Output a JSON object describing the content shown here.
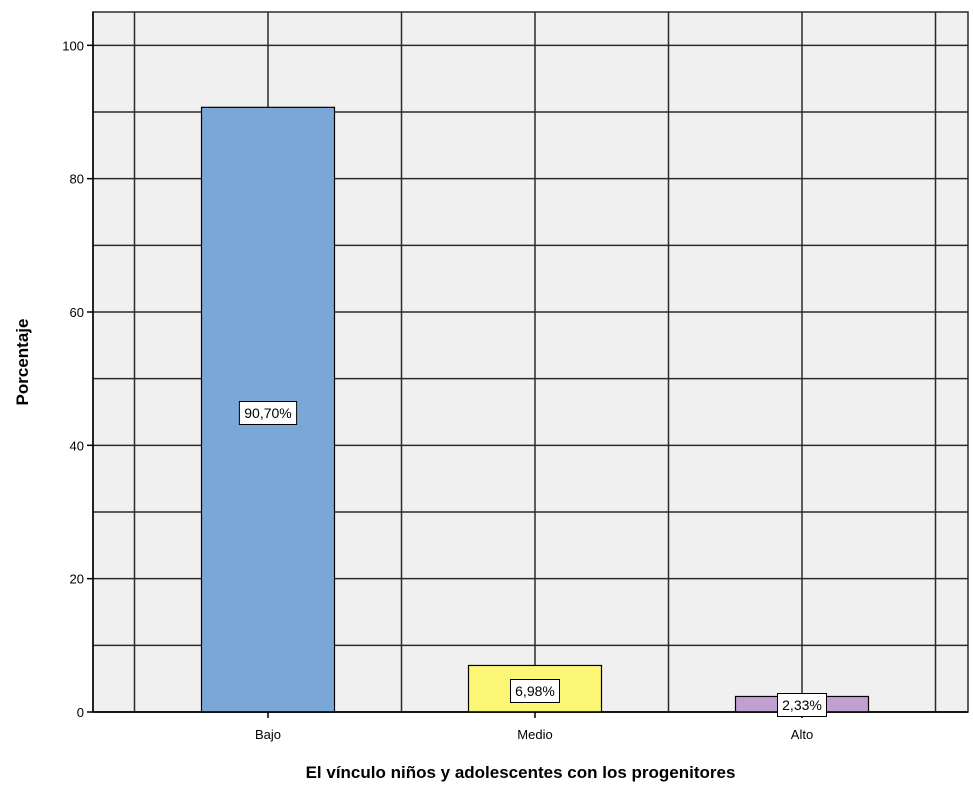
{
  "chart_data": {
    "type": "bar",
    "title": "",
    "xlabel": "El vínculo niños y adolescentes con los progenitores",
    "ylabel": "Porcentaje",
    "categories": [
      "Bajo",
      "Medio",
      "Alto"
    ],
    "values": [
      90.7,
      6.98,
      2.33
    ],
    "data_labels": [
      "90,70%",
      "6,98%",
      "2,33%"
    ],
    "bar_colors": [
      "#7ba7d6",
      "#fbf676",
      "#c0a0d0"
    ],
    "ylim": [
      0,
      105
    ],
    "yticks": [
      0,
      20,
      40,
      60,
      80,
      100
    ],
    "ytick_labels": [
      "0",
      "20",
      "40",
      "60",
      "80",
      "100"
    ],
    "y_gridlines": [
      0,
      10,
      20,
      30,
      40,
      50,
      60,
      70,
      80,
      90,
      100
    ],
    "grid": true,
    "legend": "none",
    "colors": {
      "plot_background": "#f0f0f0",
      "gridline": "#2b2b2b",
      "bar_border": "#000000"
    }
  }
}
